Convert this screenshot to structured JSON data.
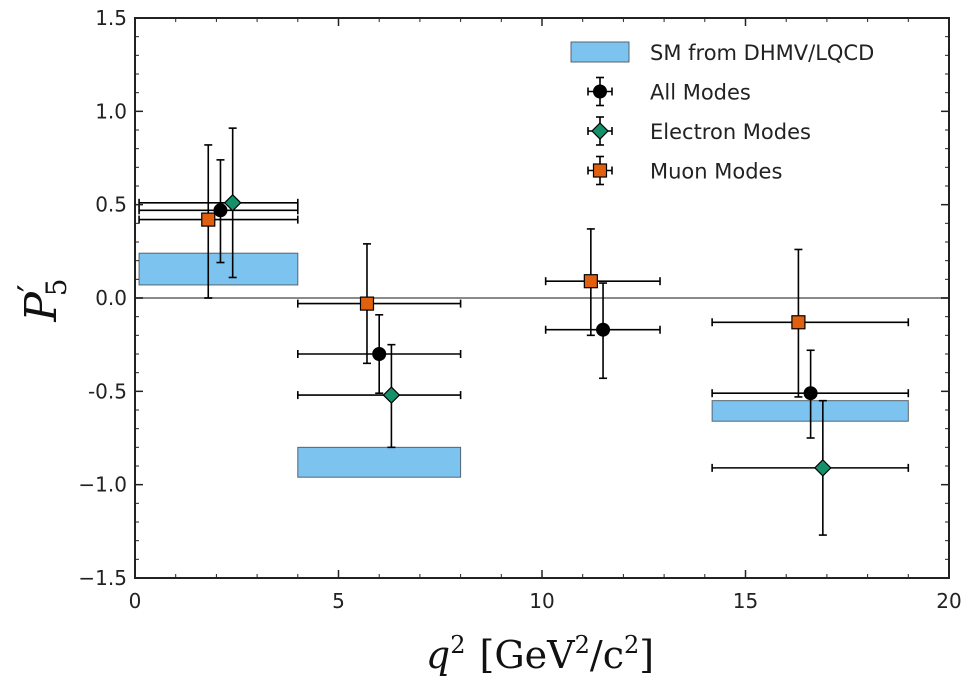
{
  "chart_data": {
    "type": "scatter",
    "title": "",
    "xlabel": "q",
    "xlabel_sup": "2",
    "xlabel_unit_open": "[GeV",
    "xlabel_unit_sup1": "2",
    "xlabel_unit_mid": "/c",
    "xlabel_unit_sup2": "2",
    "xlabel_unit_close": "]",
    "ylabel": "P",
    "ylabel_prime": "′",
    "ylabel_sub": "5",
    "xlim": [
      0,
      20
    ],
    "ylim": [
      -1.5,
      1.5
    ],
    "xticks": [
      0,
      5,
      10,
      15,
      20
    ],
    "xtick_labels": [
      "0",
      "5",
      "10",
      "15",
      "20"
    ],
    "yticks": [
      -1.5,
      -1.0,
      -0.5,
      0.0,
      0.5,
      1.0,
      1.5
    ],
    "ytick_labels": [
      "−1.5",
      "−1.0",
      "-0.5",
      "0.0",
      "0.5",
      "1.0",
      "1.5"
    ],
    "zero_line": true,
    "grid": false,
    "legend_position": "top-right",
    "sm_band": {
      "name": "SM from DHMV/LQCD",
      "color": "#7dc3ef",
      "bins": [
        {
          "xmin": 0.1,
          "xmax": 4.0,
          "ylow": 0.07,
          "yhigh": 0.24
        },
        {
          "xmin": 4.0,
          "xmax": 8.0,
          "ylow": -0.96,
          "yhigh": -0.8
        },
        {
          "xmin": 14.18,
          "xmax": 19.0,
          "ylow": -0.66,
          "yhigh": -0.55
        }
      ]
    },
    "series": [
      {
        "name": "All Modes",
        "marker": "circle",
        "color": "#000000",
        "points": [
          {
            "x": 2.1,
            "y": 0.47,
            "xlo": 0.1,
            "xhi": 4.0,
            "ylo": 0.19,
            "yhi": 0.74
          },
          {
            "x": 6.0,
            "y": -0.3,
            "xlo": 4.0,
            "xhi": 8.0,
            "ylo": -0.51,
            "yhi": -0.09
          },
          {
            "x": 11.5,
            "y": -0.17,
            "xlo": 10.09,
            "xhi": 12.9,
            "ylo": -0.43,
            "yhi": 0.08
          },
          {
            "x": 16.6,
            "y": -0.51,
            "xlo": 14.18,
            "xhi": 19.0,
            "ylo": -0.75,
            "yhi": -0.28
          }
        ]
      },
      {
        "name": "Electron Modes",
        "marker": "diamond",
        "color": "#14906b",
        "points": [
          {
            "x": 2.4,
            "y": 0.51,
            "xlo": 0.1,
            "xhi": 4.0,
            "ylo": 0.11,
            "yhi": 0.91
          },
          {
            "x": 6.3,
            "y": -0.52,
            "xlo": 4.0,
            "xhi": 8.0,
            "ylo": -0.8,
            "yhi": -0.25
          },
          {
            "x": 16.9,
            "y": -0.91,
            "xlo": 14.18,
            "xhi": 19.0,
            "ylo": -1.27,
            "yhi": -0.55
          }
        ]
      },
      {
        "name": "Muon Modes",
        "marker": "square",
        "color": "#e0600f",
        "points": [
          {
            "x": 1.8,
            "y": 0.42,
            "xlo": 0.1,
            "xhi": 4.0,
            "ylo": 0.0,
            "yhi": 0.82
          },
          {
            "x": 5.7,
            "y": -0.03,
            "xlo": 4.0,
            "xhi": 8.0,
            "ylo": -0.35,
            "yhi": 0.29
          },
          {
            "x": 11.2,
            "y": 0.09,
            "xlo": 10.09,
            "xhi": 12.9,
            "ylo": -0.2,
            "yhi": 0.37
          },
          {
            "x": 16.3,
            "y": -0.13,
            "xlo": 14.18,
            "xhi": 19.0,
            "ylo": -0.53,
            "yhi": 0.26
          }
        ]
      }
    ]
  }
}
